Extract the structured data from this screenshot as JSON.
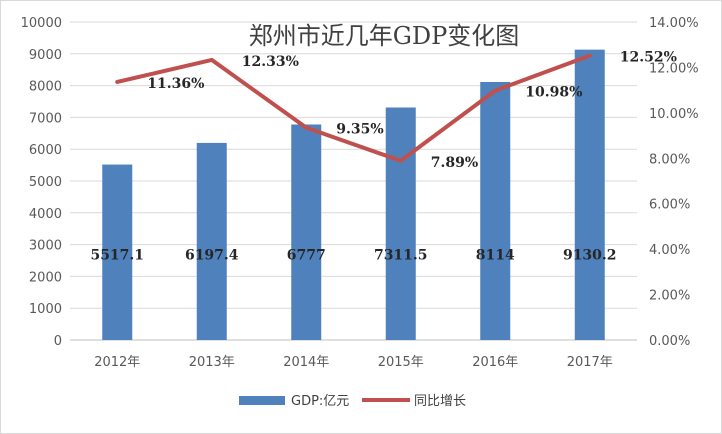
{
  "chart_data": {
    "type": "bar",
    "title": "郑州市近几年GDP变化图",
    "categories": [
      "2012年",
      "2013年",
      "2014年",
      "2015年",
      "2016年",
      "2017年"
    ],
    "series": [
      {
        "name": "GDP:亿元",
        "type": "bar",
        "axis": "left",
        "color": "#4F81BD",
        "values": [
          5517.1,
          6197.4,
          6777,
          7311.5,
          8114,
          9130.2
        ],
        "labels": [
          "5517.1",
          "6197.4",
          "6777",
          "7311.5",
          "8114",
          "9130.2"
        ]
      },
      {
        "name": "同比增长",
        "type": "line",
        "axis": "right",
        "color": "#C0504D",
        "values": [
          0.1136,
          0.1233,
          0.0935,
          0.0789,
          0.1098,
          0.1252
        ],
        "labels": [
          "11.36%",
          "12.33%",
          "9.35%",
          "7.89%",
          "10.98%",
          "12.52%"
        ]
      }
    ],
    "y_left": {
      "min": 0,
      "max": 10000,
      "ticks": [
        "0",
        "1000",
        "2000",
        "3000",
        "4000",
        "5000",
        "6000",
        "7000",
        "8000",
        "9000",
        "10000"
      ]
    },
    "y_right": {
      "min": 0,
      "max": 0.14,
      "ticks": [
        "0.00%",
        "2.00%",
        "4.00%",
        "6.00%",
        "8.00%",
        "10.00%",
        "12.00%",
        "14.00%"
      ]
    },
    "grid": true,
    "legend_position": "bottom"
  }
}
